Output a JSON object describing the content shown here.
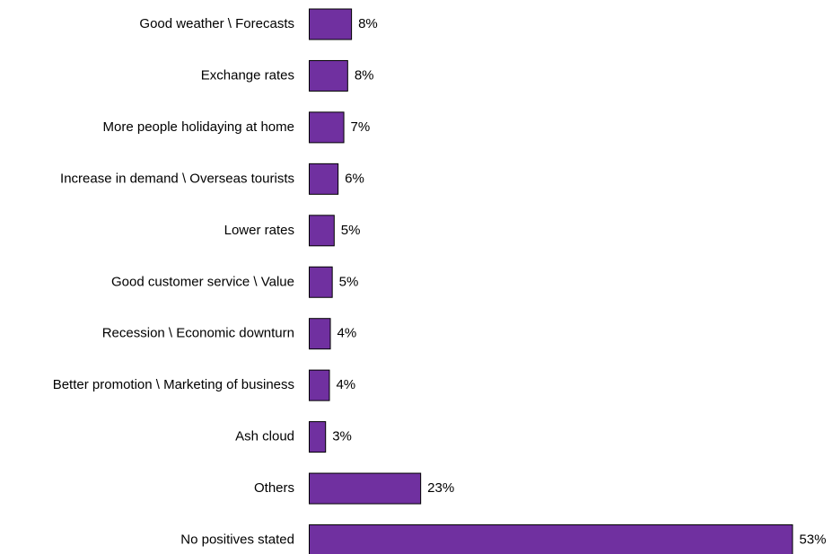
{
  "chart_data": {
    "type": "bar",
    "orientation": "horizontal",
    "categories": [
      "Good weather \\ Forecasts",
      "Exchange rates",
      "More people holidaying at home",
      "Increase in demand \\ Overseas tourists",
      "Lower rates",
      "Good customer service \\ Value",
      "Recession \\ Economic downturn",
      "Better promotion \\ Marketing of business",
      "Ash cloud",
      "Others",
      "No positives stated"
    ],
    "values": [
      8,
      8,
      7,
      6,
      5,
      5,
      4,
      4,
      3,
      23,
      53
    ],
    "value_labels": [
      "8%",
      "8%",
      "7%",
      "6%",
      "5%",
      "5%",
      "4%",
      "4%",
      "3%",
      "23%",
      "53%"
    ],
    "bar_fractions": [
      0.0815,
      0.0741,
      0.0667,
      0.0556,
      0.0481,
      0.0444,
      0.0407,
      0.0389,
      0.0315,
      0.2148,
      0.9315
    ],
    "xlim": [
      0,
      57
    ],
    "grid": false,
    "legend": "none",
    "colors": {
      "bar": "#7030a0",
      "bar_border": "#000000",
      "text": "#000000",
      "background": "#ffffff"
    }
  }
}
